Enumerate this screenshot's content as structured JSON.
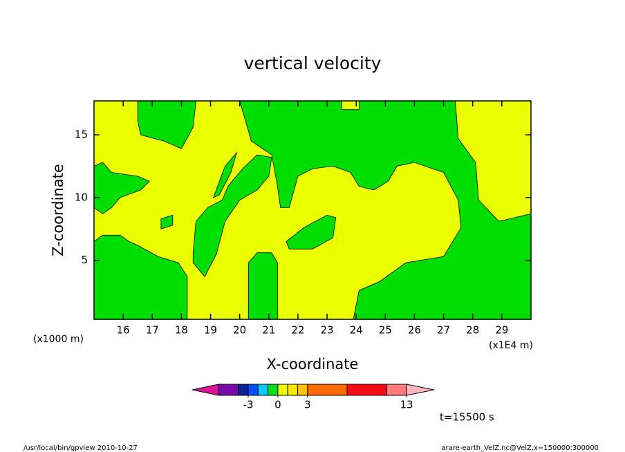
{
  "chart_data": {
    "type": "contour",
    "title": "vertical velocity",
    "xlabel": "X-coordinate",
    "ylabel": "Z-coordinate",
    "x_unit": "(x1E4 m)",
    "y_unit": "(x1000 m)",
    "time_label": "t=15500 s",
    "footer_left": "/usr/local/bin/gpview  2010-10-27",
    "footer_right": "arare-earth_VelZ.nc@VelZ,x=150000:300000",
    "xlim": [
      15,
      30
    ],
    "ylim": [
      0.3,
      17.7
    ],
    "xticks": [
      16,
      17,
      18,
      19,
      20,
      21,
      22,
      23,
      24,
      25,
      26,
      27,
      28,
      29
    ],
    "yticks": [
      5,
      10,
      15
    ],
    "background_color": "#eaff00",
    "regions": [
      {
        "color": "#00dd00",
        "x": [
          16.5,
          18.5,
          18.4,
          18.0,
          17.4,
          16.6,
          16.5
        ],
        "y": [
          17.7,
          17.7,
          15.6,
          13.9,
          14.5,
          15.0,
          16.1
        ]
      },
      {
        "color": "#00dd00",
        "x": [
          15.0,
          15.3,
          15.6,
          16.5,
          16.9,
          16.6,
          15.9,
          15.6,
          15.3,
          15.0
        ],
        "y": [
          12.5,
          12.8,
          12.0,
          11.7,
          11.3,
          10.6,
          10.0,
          9.2,
          8.7,
          9.2
        ]
      },
      {
        "color": "#00dd00",
        "x": [
          15.0,
          15.3,
          15.9,
          16.2,
          16.5,
          17.2,
          17.9,
          18.2,
          18.2,
          15.0
        ],
        "y": [
          6.5,
          7.0,
          7.0,
          6.5,
          6.2,
          5.3,
          4.8,
          3.7,
          0.3,
          0.3
        ]
      },
      {
        "color": "#00dd00",
        "x": [
          20.0,
          23.5,
          23.5,
          24.1,
          24.1,
          27.4,
          27.5,
          28.1,
          28.2,
          28.9,
          30.0,
          30.0,
          23.9,
          24.1,
          24.8,
          25.7,
          27.0,
          27.6,
          27.5,
          27.0,
          26.0,
          25.4,
          25.1,
          24.6,
          24.1,
          23.8,
          23.2,
          22.5,
          22.0,
          21.7,
          21.4,
          21.3,
          21.1,
          20.4,
          20.2
        ],
        "y": [
          17.7,
          17.7,
          17.0,
          17.0,
          17.7,
          17.7,
          14.7,
          12.8,
          9.8,
          8.1,
          8.7,
          0.3,
          0.3,
          2.6,
          3.3,
          4.8,
          5.3,
          7.6,
          9.8,
          12.0,
          12.8,
          12.5,
          11.3,
          10.6,
          10.9,
          12.0,
          12.5,
          12.3,
          11.7,
          9.2,
          9.2,
          10.9,
          13.4,
          14.5,
          16.1
        ]
      },
      {
        "color": "#00dd00",
        "x": [
          18.4,
          18.5,
          18.9,
          19.4,
          19.6,
          20.1,
          20.6,
          21.1,
          21.0,
          20.6,
          20.0,
          19.5,
          19.2,
          18.8,
          18.4
        ],
        "y": [
          5.6,
          8.1,
          9.2,
          9.8,
          10.9,
          12.3,
          13.4,
          13.2,
          11.7,
          10.6,
          9.8,
          8.1,
          5.5,
          3.7,
          4.8
        ]
      },
      {
        "color": "#00dd00",
        "x": [
          20.3,
          20.6,
          21.1,
          21.3,
          21.3,
          20.3
        ],
        "y": [
          4.8,
          5.6,
          5.6,
          4.8,
          0.3,
          0.3
        ]
      },
      {
        "color": "#00dd00",
        "x": [
          21.6,
          22.2,
          23.0,
          23.3,
          23.2,
          22.5,
          21.7
        ],
        "y": [
          6.5,
          7.6,
          8.6,
          8.4,
          6.8,
          5.9,
          5.9
        ]
      },
      {
        "color": "#00dd00",
        "x": [
          17.3,
          17.7,
          17.7,
          17.3
        ],
        "y": [
          7.5,
          7.8,
          8.6,
          8.3
        ]
      },
      {
        "color": "#00dd00",
        "x": [
          19.1,
          19.5,
          19.9,
          19.7,
          19.3
        ],
        "y": [
          10.0,
          12.5,
          13.6,
          12.0,
          10.2
        ]
      }
    ],
    "colorbar": {
      "levels": [
        -6,
        -4,
        -3,
        -2,
        -1,
        0,
        1,
        2,
        3,
        7,
        11,
        13
      ],
      "colors": [
        "#dd1199",
        "#7a0aaa",
        "#0a1f9a",
        "#0050ff",
        "#00ccff",
        "#00dd22",
        "#eaff00",
        "#ffe800",
        "#ffc000",
        "#ff6a00",
        "#ff0a14",
        "#ff7b7b",
        "#ffb6c1"
      ],
      "ticks": [
        -3,
        0,
        3,
        13
      ]
    }
  }
}
